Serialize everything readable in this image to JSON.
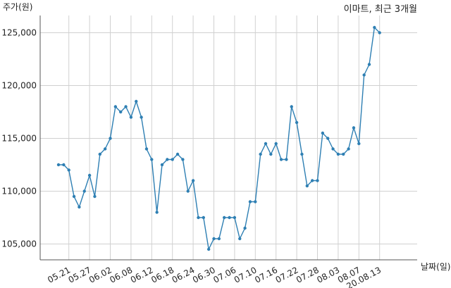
{
  "chart_data": {
    "type": "line",
    "title": "이마트, 최근 3개월",
    "ylabel": "주가(원)",
    "xlabel": "날짜(일)",
    "ylim": [
      103500,
      127000
    ],
    "yticks": [
      105000,
      110000,
      115000,
      120000,
      125000
    ],
    "ytick_labels": [
      "105,000",
      "110,000",
      "115,000",
      "120,000",
      "125,000"
    ],
    "xtick_labels": [
      "05.21",
      "05.27",
      "06.02",
      "06.08",
      "06.12",
      "06.18",
      "06.24",
      "06.30",
      "07.06",
      "07.10",
      "07.16",
      "07.22",
      "07.28",
      "08.03",
      "08.07",
      "20.08.13"
    ],
    "xtick_index": [
      2,
      6,
      10,
      14,
      18,
      22,
      26,
      30,
      34,
      38,
      42,
      46,
      50,
      54,
      58,
      62
    ],
    "grid": true,
    "color": "#2e7fb3",
    "series": [
      {
        "name": "",
        "values": [
          112500,
          112500,
          112000,
          109500,
          108500,
          110000,
          111500,
          109500,
          113500,
          114000,
          115000,
          118000,
          117500,
          118000,
          117000,
          118500,
          117000,
          114000,
          113000,
          108000,
          112500,
          113000,
          113000,
          113500,
          113000,
          110000,
          111000,
          107500,
          107500,
          104500,
          105500,
          105500,
          107500,
          107500,
          107500,
          105500,
          106500,
          109000,
          109000,
          113500,
          114500,
          113500,
          114500,
          113000,
          113000,
          118000,
          116500,
          113500,
          110500,
          111000,
          111000,
          115500,
          115000,
          114000,
          113500,
          113500,
          114000,
          116000,
          114500,
          121000,
          122000,
          125500,
          125000
        ]
      }
    ]
  }
}
